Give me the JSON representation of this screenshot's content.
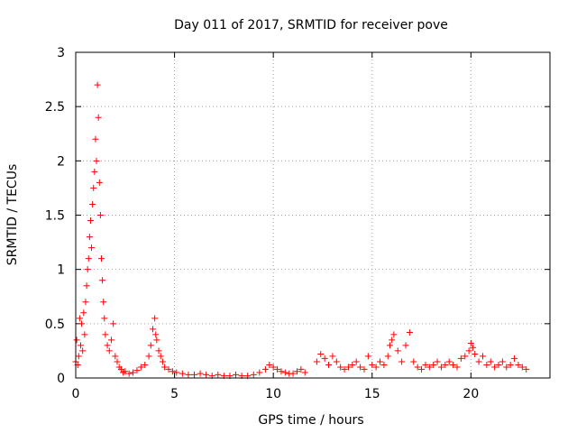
{
  "chart_data": {
    "type": "scatter",
    "title": "Day 011 of 2017, SRMTID for receiver pove",
    "xlabel": "GPS time / hours",
    "ylabel": "SRMTID / TECUs",
    "xlim": [
      0,
      24
    ],
    "ylim": [
      0,
      3
    ],
    "xticks": [
      0,
      5,
      10,
      15,
      20
    ],
    "xtick_labels": [
      "0",
      "5",
      "10",
      "15",
      "20"
    ],
    "yticks": [
      0,
      0.5,
      1,
      1.5,
      2,
      2.5,
      3
    ],
    "ytick_labels": [
      "0",
      "0.5",
      "1",
      "1.5",
      "2",
      "2.5",
      "3"
    ],
    "grid": true,
    "marker": "plus",
    "series": [
      {
        "name": "SRMTID",
        "color": "#ff0000",
        "x": [
          0.0,
          0.05,
          0.1,
          0.15,
          0.2,
          0.25,
          0.3,
          0.35,
          0.4,
          0.45,
          0.5,
          0.55,
          0.6,
          0.65,
          0.7,
          0.75,
          0.8,
          0.85,
          0.9,
          0.95,
          1.0,
          1.05,
          1.1,
          1.15,
          1.2,
          1.25,
          1.3,
          1.35,
          1.4,
          1.45,
          1.5,
          1.6,
          1.7,
          1.8,
          1.9,
          2.0,
          2.1,
          2.2,
          2.3,
          2.4,
          2.5,
          2.7,
          2.9,
          3.1,
          3.3,
          3.5,
          3.7,
          3.8,
          3.9,
          4.0,
          4.05,
          4.1,
          4.2,
          4.3,
          4.4,
          4.5,
          4.7,
          4.9,
          5.1,
          5.4,
          5.7,
          6.0,
          6.3,
          6.6,
          6.9,
          7.2,
          7.5,
          7.8,
          8.1,
          8.4,
          8.7,
          9.0,
          9.3,
          9.6,
          9.8,
          10.0,
          10.2,
          10.4,
          10.6,
          10.8,
          11.0,
          11.2,
          11.4,
          11.6,
          12.2,
          12.4,
          12.6,
          12.8,
          13.0,
          13.2,
          13.4,
          13.6,
          13.8,
          14.0,
          14.2,
          14.4,
          14.6,
          14.8,
          15.0,
          15.2,
          15.4,
          15.6,
          15.8,
          15.9,
          16.0,
          16.1,
          16.3,
          16.5,
          16.7,
          16.9,
          17.1,
          17.3,
          17.5,
          17.7,
          17.9,
          18.1,
          18.3,
          18.5,
          18.7,
          18.9,
          19.1,
          19.3,
          19.5,
          19.7,
          19.9,
          20.0,
          20.1,
          20.2,
          20.4,
          20.6,
          20.8,
          21.0,
          21.2,
          21.4,
          21.6,
          21.8,
          22.0,
          22.2,
          22.4,
          22.6,
          22.8
        ],
        "y": [
          0.15,
          0.35,
          0.12,
          0.2,
          0.55,
          0.3,
          0.5,
          0.25,
          0.6,
          0.4,
          0.7,
          0.85,
          1.0,
          1.1,
          1.3,
          1.45,
          1.2,
          1.6,
          1.75,
          1.9,
          2.2,
          2.0,
          2.7,
          2.4,
          1.8,
          1.5,
          1.1,
          0.9,
          0.7,
          0.55,
          0.4,
          0.3,
          0.25,
          0.35,
          0.5,
          0.2,
          0.15,
          0.1,
          0.08,
          0.05,
          0.06,
          0.04,
          0.05,
          0.07,
          0.1,
          0.12,
          0.2,
          0.3,
          0.45,
          0.55,
          0.4,
          0.35,
          0.25,
          0.2,
          0.15,
          0.1,
          0.08,
          0.06,
          0.05,
          0.04,
          0.03,
          0.03,
          0.04,
          0.03,
          0.02,
          0.03,
          0.02,
          0.02,
          0.03,
          0.02,
          0.02,
          0.03,
          0.05,
          0.08,
          0.12,
          0.1,
          0.08,
          0.06,
          0.05,
          0.04,
          0.04,
          0.06,
          0.08,
          0.05,
          0.15,
          0.22,
          0.18,
          0.12,
          0.2,
          0.15,
          0.1,
          0.08,
          0.1,
          0.12,
          0.15,
          0.1,
          0.08,
          0.2,
          0.12,
          0.1,
          0.15,
          0.12,
          0.2,
          0.3,
          0.35,
          0.4,
          0.25,
          0.15,
          0.3,
          0.42,
          0.15,
          0.1,
          0.08,
          0.12,
          0.1,
          0.12,
          0.15,
          0.1,
          0.12,
          0.15,
          0.12,
          0.1,
          0.18,
          0.2,
          0.25,
          0.32,
          0.28,
          0.22,
          0.15,
          0.2,
          0.12,
          0.15,
          0.1,
          0.12,
          0.15,
          0.1,
          0.12,
          0.18,
          0.12,
          0.1,
          0.08
        ]
      }
    ]
  }
}
